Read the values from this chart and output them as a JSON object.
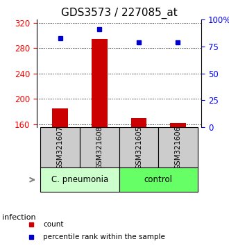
{
  "title": "GDS3573 / 227085_at",
  "samples": [
    "GSM321607",
    "GSM321608",
    "GSM321605",
    "GSM321606"
  ],
  "counts": [
    185,
    295,
    170,
    162
  ],
  "percentiles": [
    83,
    91,
    79,
    79
  ],
  "ylim_left": [
    155,
    325
  ],
  "ylim_right": [
    0,
    100
  ],
  "yticks_left": [
    160,
    200,
    240,
    280,
    320
  ],
  "ytick_labels_left": [
    "160",
    "200",
    "240",
    "280",
    "320"
  ],
  "yticks_right": [
    0,
    25,
    50,
    75,
    100
  ],
  "ytick_labels_right": [
    "0",
    "25",
    "50",
    "75",
    "100%"
  ],
  "groups": [
    {
      "label": "C. pneumonia",
      "samples": [
        0,
        1
      ],
      "color": "#ccffcc"
    },
    {
      "label": "control",
      "samples": [
        2,
        3
      ],
      "color": "#66ff66"
    }
  ],
  "bar_color": "#cc0000",
  "dot_color": "#0000cc",
  "bar_width": 0.4,
  "sample_box_color": "#cccccc",
  "group_arrow_label": "infection",
  "legend_items": [
    {
      "color": "#cc0000",
      "label": "count"
    },
    {
      "color": "#0000cc",
      "label": "percentile rank within the sample"
    }
  ],
  "title_fontsize": 11,
  "tick_fontsize": 8.5,
  "sample_label_fontsize": 7.5
}
